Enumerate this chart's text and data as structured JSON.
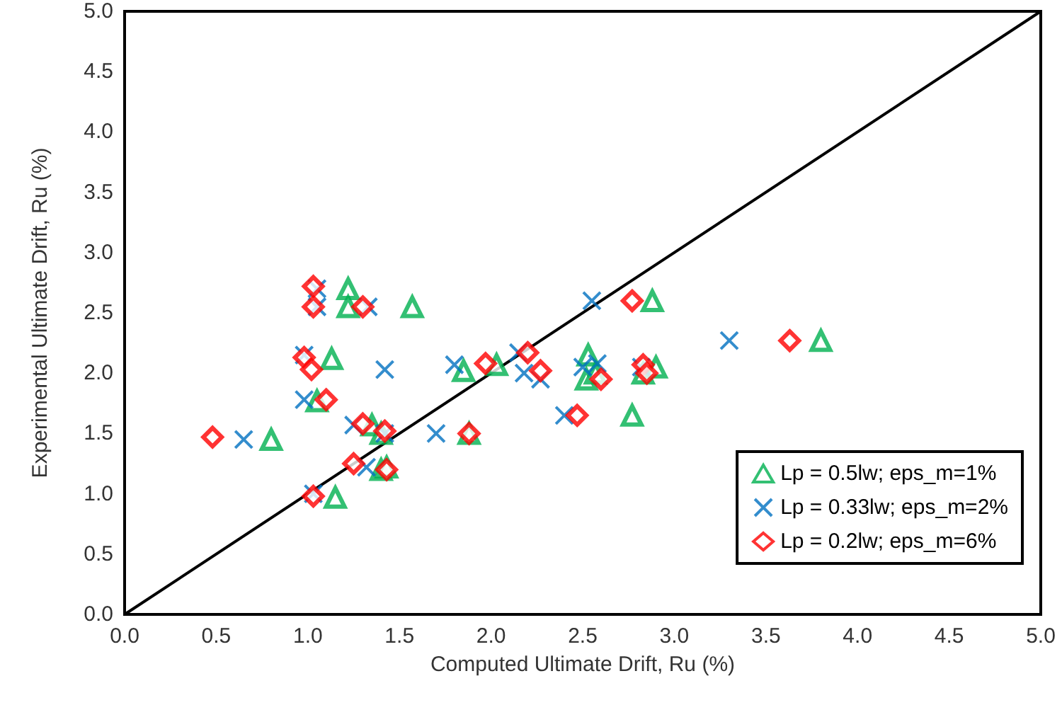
{
  "chart_data": {
    "type": "scatter",
    "xlabel": "Computed Ultimate Drift, Ru (%)",
    "ylabel": "Experimental Ultimate Drift, Ru (%)",
    "xlim": [
      0,
      5
    ],
    "ylim": [
      0,
      5
    ],
    "xticks": [
      {
        "value": 0,
        "label": "0.0"
      },
      {
        "value": 0.5,
        "label": "0.5"
      },
      {
        "value": 1,
        "label": "1.0"
      },
      {
        "value": 1.5,
        "label": "1.5"
      },
      {
        "value": 2,
        "label": "2.0"
      },
      {
        "value": 2.5,
        "label": "2.5"
      },
      {
        "value": 3,
        "label": "3.0"
      },
      {
        "value": 3.5,
        "label": "3.5"
      },
      {
        "value": 4,
        "label": "4.0"
      },
      {
        "value": 4.5,
        "label": "4.5"
      },
      {
        "value": 5,
        "label": "5.0"
      }
    ],
    "yticks": [
      {
        "value": 0,
        "label": "0.0"
      },
      {
        "value": 0.5,
        "label": "0.5"
      },
      {
        "value": 1,
        "label": "1.0"
      },
      {
        "value": 1.5,
        "label": "1.5"
      },
      {
        "value": 2,
        "label": "2.0"
      },
      {
        "value": 2.5,
        "label": "2.5"
      },
      {
        "value": 3,
        "label": "3.0"
      },
      {
        "value": 3.5,
        "label": "3.5"
      },
      {
        "value": 4,
        "label": "4.0"
      },
      {
        "value": 4.5,
        "label": "4.5"
      },
      {
        "value": 5,
        "label": "5.0"
      }
    ],
    "grid": false,
    "legend": "bottom right",
    "series": [
      {
        "name": "Lp = 0.5lw; eps_m=1%",
        "color": "#00b050",
        "marker": "triangle",
        "x": [
          0.8,
          1.05,
          1.13,
          1.15,
          1.22,
          1.22,
          1.35,
          1.4,
          1.4,
          1.57,
          1.85,
          1.88,
          2.03,
          2.53,
          2.52,
          2.57,
          2.77,
          2.83,
          2.88,
          2.9,
          3.8,
          1.43
        ],
        "values": [
          1.45,
          1.77,
          2.12,
          0.97,
          2.7,
          2.55,
          1.57,
          1.5,
          1.2,
          2.55,
          2.02,
          1.5,
          2.07,
          2.15,
          1.95,
          2.0,
          1.65,
          2.0,
          2.6,
          2.05,
          2.27,
          1.22
        ]
      },
      {
        "name": "Lp = 0.33lw; eps_m=2%",
        "color": "#0070c0",
        "marker": "cross",
        "x": [
          0.65,
          0.98,
          0.98,
          1.05,
          1.05,
          1.33,
          1.25,
          1.32,
          1.42,
          1.42,
          1.7,
          1.8,
          2.15,
          2.18,
          2.27,
          2.4,
          2.55,
          2.5,
          2.58,
          3.3,
          1.03,
          2.82
        ],
        "values": [
          1.45,
          1.78,
          2.15,
          2.7,
          2.55,
          2.55,
          1.57,
          1.22,
          2.03,
          1.5,
          1.5,
          2.07,
          2.17,
          2.0,
          1.95,
          1.65,
          2.6,
          2.05,
          2.08,
          2.27,
          1.0,
          2.05
        ]
      },
      {
        "name": "Lp = 0.2lw; eps_m=6%",
        "color": "#ff0000",
        "marker": "diamond",
        "x": [
          0.48,
          0.98,
          1.02,
          1.03,
          1.03,
          1.3,
          1.1,
          1.3,
          1.42,
          1.25,
          1.43,
          1.03,
          1.88,
          1.97,
          2.2,
          2.27,
          2.47,
          2.6,
          2.77,
          2.83,
          2.85,
          3.63
        ],
        "values": [
          1.47,
          2.13,
          2.03,
          2.72,
          2.55,
          2.55,
          1.78,
          1.58,
          1.52,
          1.25,
          1.2,
          0.98,
          1.5,
          2.08,
          2.17,
          2.02,
          1.65,
          1.95,
          2.6,
          2.07,
          2.0,
          2.27
        ]
      },
      {
        "type": "line",
        "color": "#000000",
        "marker": "none",
        "x": [
          0,
          5
        ],
        "values": [
          0,
          5
        ]
      }
    ]
  }
}
